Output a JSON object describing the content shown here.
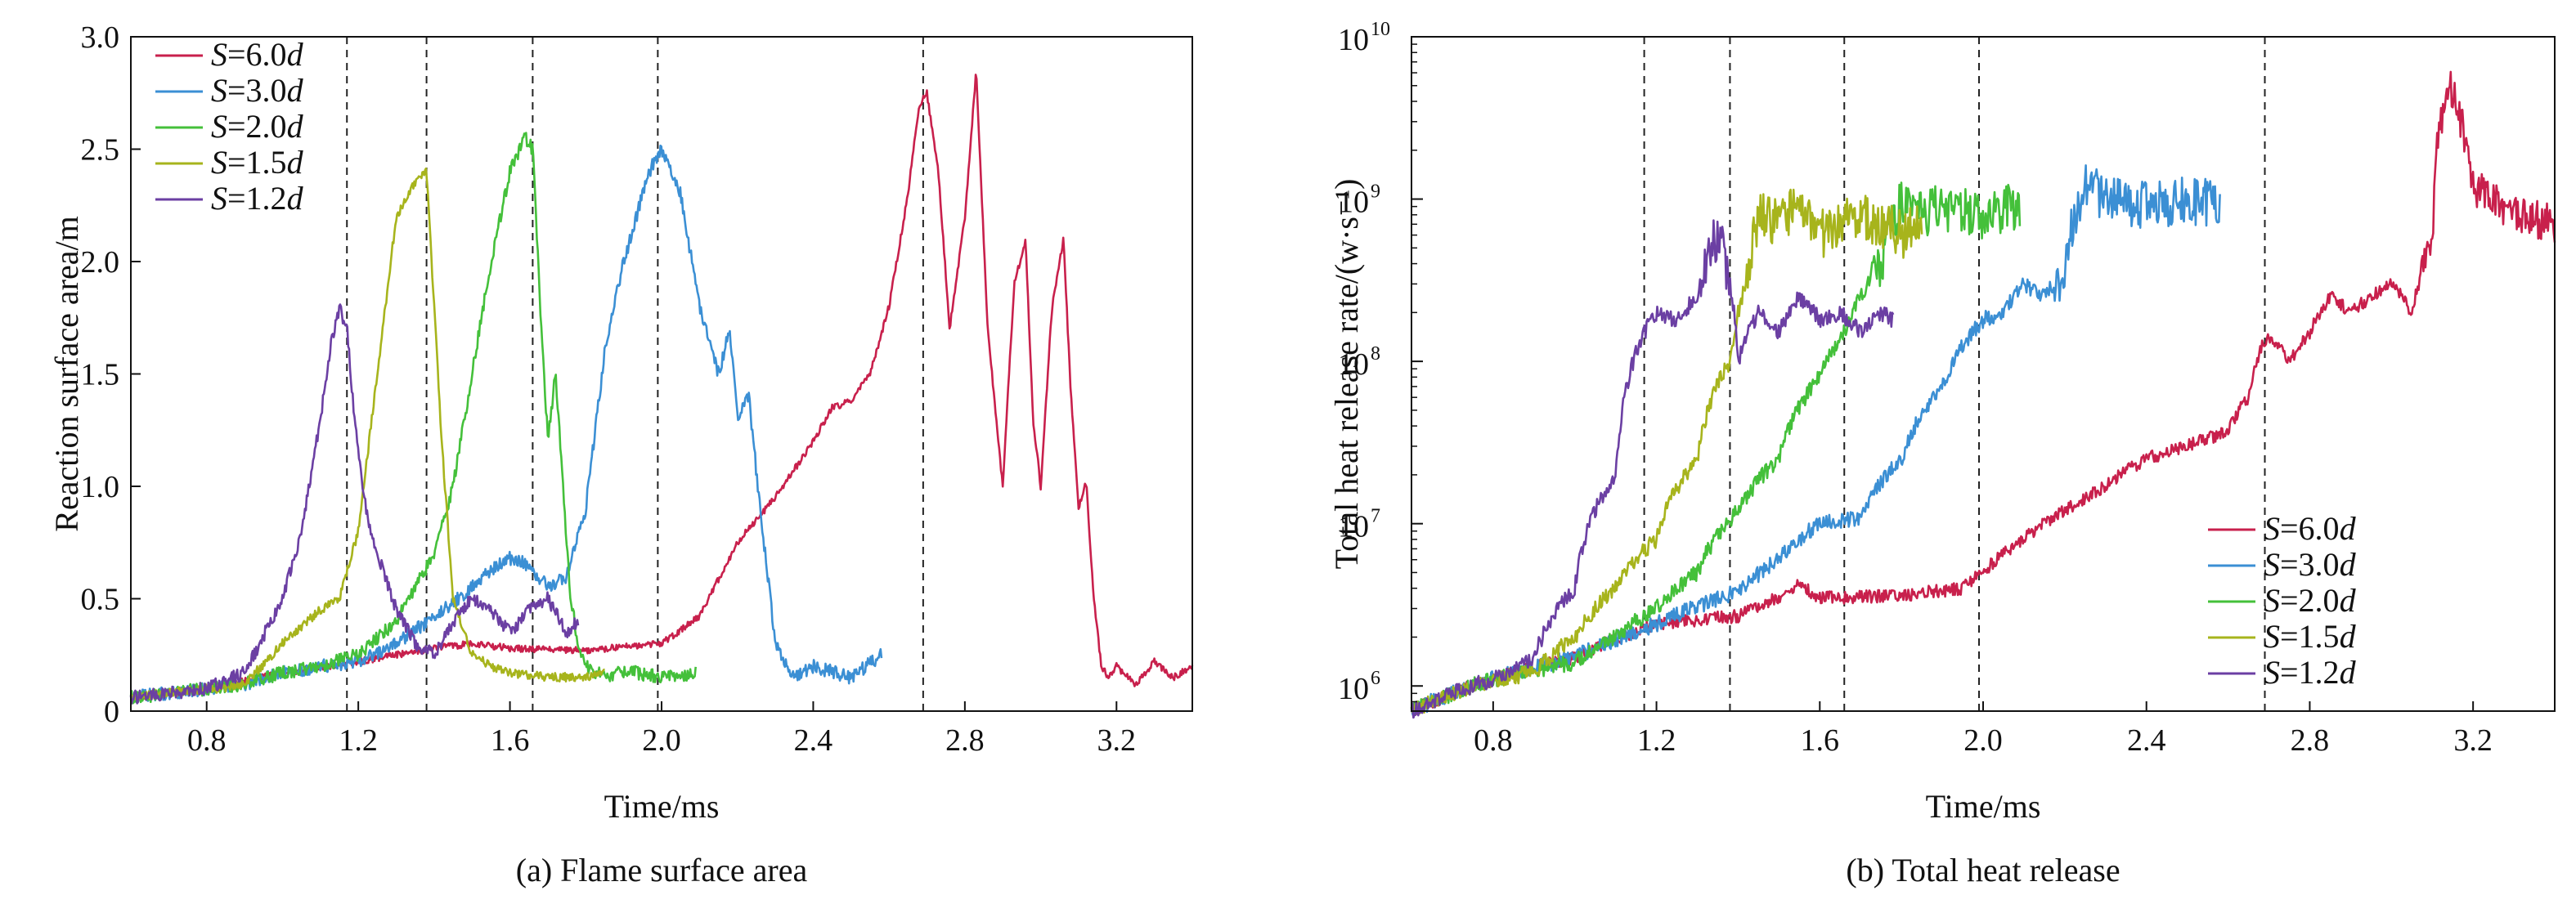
{
  "figure": {
    "panels": [
      {
        "caption": "(a) Flame surface area"
      },
      {
        "caption": "(b) Total heat release"
      }
    ]
  },
  "chart_data": [
    {
      "type": "line",
      "caption": "(a) Flame surface area",
      "xlabel": "Time/ms",
      "ylabel": "Reaction surface area/m",
      "xlim": [
        0.6,
        3.4
      ],
      "ylim": [
        0,
        3.0
      ],
      "x_scale": "linear",
      "y_scale": "linear",
      "xticks": [
        "0.8",
        "1.2",
        "1.6",
        "2.0",
        "2.4",
        "2.8",
        "3.2"
      ],
      "xtick_values": [
        0.8,
        1.2,
        1.6,
        2.0,
        2.4,
        2.8,
        3.2
      ],
      "yticks": [
        "0",
        "0.5",
        "1.0",
        "1.5",
        "2.0",
        "2.5",
        "3.0"
      ],
      "ytick_values": [
        0,
        0.5,
        1.0,
        1.5,
        2.0,
        2.5,
        3.0
      ],
      "grid": false,
      "legend": {
        "placement": "top-left"
      },
      "reference_lines_x": [
        1.17,
        1.38,
        1.66,
        1.99,
        2.69
      ],
      "series": [
        {
          "name": "S=6.0d",
          "legend_main": "S",
          "legend_rest": "=6.0",
          "legend_unit": "d",
          "color": "#c8204c",
          "noise": 0.015,
          "x": [
            0.6,
            0.8,
            1.0,
            1.2,
            1.4,
            1.5,
            1.6,
            1.8,
            2.0,
            2.1,
            2.2,
            2.3,
            2.4,
            2.45,
            2.5,
            2.55,
            2.6,
            2.65,
            2.68,
            2.7,
            2.73,
            2.76,
            2.8,
            2.83,
            2.86,
            2.9,
            2.93,
            2.96,
            2.98,
            3.0,
            3.03,
            3.06,
            3.08,
            3.1,
            3.12,
            3.14,
            3.16,
            3.18,
            3.2,
            3.25,
            3.3,
            3.35,
            3.4
          ],
          "y": [
            0.06,
            0.1,
            0.17,
            0.22,
            0.28,
            0.3,
            0.28,
            0.27,
            0.3,
            0.42,
            0.75,
            0.95,
            1.2,
            1.35,
            1.38,
            1.5,
            1.8,
            2.3,
            2.7,
            2.75,
            2.4,
            1.7,
            2.2,
            2.85,
            1.7,
            1.0,
            1.9,
            2.1,
            1.3,
            1.0,
            1.8,
            2.1,
            1.4,
            0.9,
            1.02,
            0.5,
            0.2,
            0.15,
            0.2,
            0.12,
            0.22,
            0.15,
            0.2
          ]
        },
        {
          "name": "S=3.0d",
          "legend_main": "S",
          "legend_rest": "=3.0",
          "legend_unit": "d",
          "color": "#3b8fd4",
          "noise": 0.03,
          "x": [
            0.6,
            0.8,
            0.9,
            1.0,
            1.1,
            1.2,
            1.3,
            1.4,
            1.5,
            1.55,
            1.6,
            1.65,
            1.7,
            1.75,
            1.8,
            1.85,
            1.9,
            1.95,
            1.98,
            2.0,
            2.05,
            2.1,
            2.15,
            2.18,
            2.2,
            2.23,
            2.26,
            2.3,
            2.35,
            2.4,
            2.5,
            2.58
          ],
          "y": [
            0.06,
            0.1,
            0.12,
            0.17,
            0.2,
            0.22,
            0.3,
            0.42,
            0.55,
            0.63,
            0.68,
            0.65,
            0.55,
            0.6,
            0.9,
            1.6,
            2.0,
            2.3,
            2.45,
            2.5,
            2.3,
            1.8,
            1.5,
            1.7,
            1.3,
            1.4,
            0.9,
            0.3,
            0.15,
            0.2,
            0.15,
            0.25
          ]
        },
        {
          "name": "S=2.0d",
          "legend_main": "S",
          "legend_rest": "=2.0",
          "legend_unit": "d",
          "color": "#44c03a",
          "noise": 0.03,
          "x": [
            0.6,
            0.8,
            0.9,
            1.0,
            1.1,
            1.2,
            1.3,
            1.4,
            1.45,
            1.5,
            1.55,
            1.6,
            1.64,
            1.66,
            1.68,
            1.7,
            1.72,
            1.74,
            1.76,
            1.78,
            1.8,
            1.85,
            1.9,
            2.0,
            2.09
          ],
          "y": [
            0.06,
            0.1,
            0.12,
            0.17,
            0.2,
            0.25,
            0.4,
            0.7,
            1.0,
            1.5,
            2.0,
            2.4,
            2.55,
            2.5,
            1.8,
            1.2,
            1.5,
            1.0,
            0.5,
            0.3,
            0.2,
            0.15,
            0.18,
            0.15,
            0.17
          ]
        },
        {
          "name": "S=1.5d",
          "legend_main": "S",
          "legend_rest": "=1.5",
          "legend_unit": "d",
          "color": "#a7b41c",
          "noise": 0.02,
          "x": [
            0.6,
            0.8,
            0.85,
            0.9,
            1.0,
            1.1,
            1.15,
            1.2,
            1.25,
            1.3,
            1.35,
            1.38,
            1.4,
            1.42,
            1.45,
            1.5,
            1.55,
            1.6,
            1.7,
            1.8,
            1.85
          ],
          "y": [
            0.06,
            0.1,
            0.1,
            0.12,
            0.3,
            0.45,
            0.5,
            0.8,
            1.5,
            2.2,
            2.35,
            2.4,
            1.8,
            1.2,
            0.5,
            0.25,
            0.2,
            0.17,
            0.15,
            0.15,
            0.18
          ]
        },
        {
          "name": "S=1.2d",
          "legend_main": "S",
          "legend_rest": "=1.2",
          "legend_unit": "d",
          "color": "#6b3fa3",
          "noise": 0.03,
          "x": [
            0.6,
            0.7,
            0.8,
            0.9,
            1.0,
            1.05,
            1.1,
            1.13,
            1.15,
            1.17,
            1.19,
            1.22,
            1.25,
            1.3,
            1.35,
            1.4,
            1.45,
            1.5,
            1.55,
            1.6,
            1.65,
            1.7,
            1.75,
            1.78
          ],
          "y": [
            0.06,
            0.08,
            0.1,
            0.17,
            0.5,
            0.8,
            1.3,
            1.65,
            1.8,
            1.7,
            1.3,
            0.9,
            0.7,
            0.45,
            0.3,
            0.25,
            0.4,
            0.5,
            0.45,
            0.35,
            0.45,
            0.5,
            0.35,
            0.4
          ]
        }
      ]
    },
    {
      "type": "line",
      "caption": "(b) Total heat release",
      "xlabel": "Time/ms",
      "ylabel": "Total heat release rate/(w·s⁻¹)",
      "xlim": [
        0.6,
        3.4
      ],
      "ylim": [
        700000,
        10000000000
      ],
      "x_scale": "linear",
      "y_scale": "log",
      "xticks": [
        "0.8",
        "1.2",
        "1.6",
        "2.0",
        "2.4",
        "2.8",
        "3.2"
      ],
      "xtick_values": [
        0.8,
        1.2,
        1.6,
        2.0,
        2.4,
        2.8,
        3.2
      ],
      "yticks": [
        {
          "base": "10",
          "exp": "6",
          "value": 1000000
        },
        {
          "base": "10",
          "exp": "7",
          "value": 10000000
        },
        {
          "base": "10",
          "exp": "8",
          "value": 100000000
        },
        {
          "base": "10",
          "exp": "9",
          "value": 1000000000
        },
        {
          "base": "10",
          "exp": "10",
          "value": 10000000000
        }
      ],
      "grid": false,
      "legend": {
        "placement": "bottom-right"
      },
      "reference_lines_x": [
        1.17,
        1.38,
        1.66,
        1.99,
        2.69
      ],
      "series": [
        {
          "name": "S=6.0d",
          "legend_main": "S",
          "legend_rest": "=6.0",
          "legend_unit": "d",
          "color": "#c8204c",
          "noise": 0.04,
          "x": [
            0.6,
            0.8,
            1.0,
            1.2,
            1.4,
            1.5,
            1.55,
            1.6,
            1.8,
            1.95,
            2.0,
            2.1,
            2.2,
            2.3,
            2.4,
            2.5,
            2.6,
            2.65,
            2.68,
            2.7,
            2.75,
            2.8,
            2.85,
            2.9,
            3.0,
            3.05,
            3.1,
            3.12,
            3.14,
            3.2,
            3.3,
            3.4
          ],
          "y": [
            700000,
            1100000,
            1500000,
            2400000,
            2700000,
            3500000,
            4200000,
            3500000,
            3600000,
            4000000,
            5000000,
            8000000,
            12000000,
            17000000,
            25000000,
            30000000,
            37000000,
            60000000,
            120000000,
            140000000,
            100000000,
            150000000,
            250000000,
            200000000,
            300000000,
            200000000,
            500000000,
            3000000000,
            5000000000,
            1200000000,
            800000000,
            700000000
          ]
        },
        {
          "name": "S=3.0d",
          "legend_main": "S",
          "legend_rest": "=3.0",
          "legend_unit": "d",
          "color": "#3b8fd4",
          "noise": 0.05,
          "x": [
            0.6,
            0.8,
            1.0,
            1.2,
            1.4,
            1.5,
            1.6,
            1.7,
            1.8,
            1.9,
            2.0,
            2.05,
            2.1,
            2.15,
            2.2,
            2.25,
            2.3,
            2.4,
            2.5,
            2.58
          ],
          "y": [
            700000,
            1100000,
            1500000,
            2400000,
            3800000,
            6000000,
            10000000,
            11000000,
            25000000,
            70000000,
            180000000,
            200000000,
            300000000,
            250000000,
            350000000,
            1200000000,
            1000000000,
            900000000,
            1000000000,
            900000000
          ]
        },
        {
          "name": "S=2.0d",
          "legend_main": "S",
          "legend_rest": "=2.0",
          "legend_unit": "d",
          "color": "#44c03a",
          "noise": 0.05,
          "x": [
            0.6,
            0.8,
            1.0,
            1.1,
            1.2,
            1.3,
            1.4,
            1.5,
            1.6,
            1.66,
            1.7,
            1.75,
            1.78,
            1.8,
            1.85,
            1.9,
            2.0,
            2.09
          ],
          "y": [
            700000,
            1100000,
            1400000,
            2000000,
            3000000,
            5000000,
            12000000,
            25000000,
            80000000,
            150000000,
            250000000,
            400000000,
            700000000,
            1000000000,
            800000000,
            900000000,
            800000000,
            900000000
          ]
        },
        {
          "name": "S=1.5d",
          "legend_main": "S",
          "legend_rest": "=1.5",
          "legend_unit": "d",
          "color": "#a7b41c",
          "noise": 0.05,
          "x": [
            0.6,
            0.8,
            0.9,
            1.0,
            1.1,
            1.2,
            1.3,
            1.38,
            1.42,
            1.45,
            1.5,
            1.55,
            1.6,
            1.7,
            1.8,
            1.85
          ],
          "y": [
            700000,
            1100000,
            1200000,
            2000000,
            4000000,
            8000000,
            25000000,
            100000000,
            300000000,
            800000000,
            700000000,
            900000000,
            600000000,
            800000000,
            600000000,
            700000000
          ]
        },
        {
          "name": "S=1.2d",
          "legend_main": "S",
          "legend_rest": "=1.2",
          "legend_unit": "d",
          "color": "#6b3fa3",
          "noise": 0.05,
          "x": [
            0.6,
            0.8,
            0.9,
            1.0,
            1.1,
            1.17,
            1.2,
            1.25,
            1.3,
            1.35,
            1.38,
            1.4,
            1.45,
            1.5,
            1.55,
            1.6,
            1.65,
            1.7,
            1.75,
            1.78
          ],
          "y": [
            700000,
            1100000,
            1500000,
            4000000,
            20000000,
            150000000,
            200000000,
            180000000,
            250000000,
            600000000,
            300000000,
            100000000,
            200000000,
            150000000,
            250000000,
            180000000,
            200000000,
            150000000,
            200000000,
            180000000
          ]
        }
      ]
    }
  ]
}
